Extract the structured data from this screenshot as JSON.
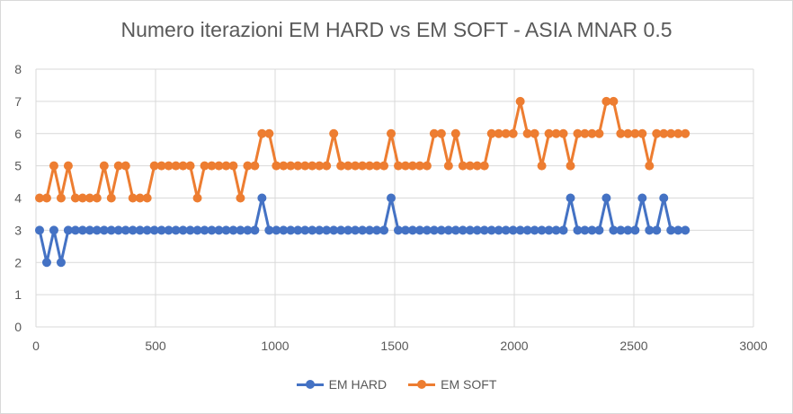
{
  "chart_data": {
    "type": "line",
    "title": "Numero iterazioni EM HARD vs EM SOFT - ASIA MNAR 0.5",
    "xlabel": "",
    "ylabel": "",
    "xlim": [
      0,
      3000
    ],
    "ylim": [
      0,
      8
    ],
    "x_ticks": [
      0,
      500,
      1000,
      1500,
      2000,
      2500,
      3000
    ],
    "y_ticks": [
      0,
      1,
      2,
      3,
      4,
      5,
      6,
      7,
      8
    ],
    "grid": true,
    "legend_position": "bottom",
    "x": [
      15,
      45,
      75,
      105,
      135,
      165,
      195,
      225,
      255,
      285,
      315,
      345,
      375,
      405,
      435,
      465,
      495,
      525,
      555,
      585,
      615,
      645,
      675,
      705,
      735,
      765,
      795,
      825,
      855,
      885,
      915,
      945,
      975,
      1005,
      1035,
      1065,
      1095,
      1125,
      1155,
      1185,
      1215,
      1245,
      1275,
      1305,
      1335,
      1365,
      1395,
      1425,
      1455,
      1485,
      1515,
      1545,
      1575,
      1605,
      1635,
      1665,
      1695,
      1725,
      1755,
      1785,
      1815,
      1845,
      1875,
      1905,
      1935,
      1965,
      1995,
      2025,
      2055,
      2085,
      2115,
      2145,
      2175,
      2205,
      2235,
      2265,
      2295,
      2325,
      2355,
      2385,
      2415,
      2445,
      2475,
      2505,
      2535,
      2565,
      2595,
      2625,
      2655,
      2685,
      2715
    ],
    "series": [
      {
        "name": "EM HARD",
        "color": "#4472c4",
        "values": [
          3,
          2,
          3,
          2,
          3,
          3,
          3,
          3,
          3,
          3,
          3,
          3,
          3,
          3,
          3,
          3,
          3,
          3,
          3,
          3,
          3,
          3,
          3,
          3,
          3,
          3,
          3,
          3,
          3,
          3,
          3,
          4,
          3,
          3,
          3,
          3,
          3,
          3,
          3,
          3,
          3,
          3,
          3,
          3,
          3,
          3,
          3,
          3,
          3,
          4,
          3,
          3,
          3,
          3,
          3,
          3,
          3,
          3,
          3,
          3,
          3,
          3,
          3,
          3,
          3,
          3,
          3,
          3,
          3,
          3,
          3,
          3,
          3,
          3,
          4,
          3,
          3,
          3,
          3,
          4,
          3,
          3,
          3,
          3,
          4,
          3,
          3,
          4,
          3,
          3,
          3
        ]
      },
      {
        "name": "EM SOFT",
        "color": "#ed7d31",
        "values": [
          4,
          4,
          5,
          4,
          5,
          4,
          4,
          4,
          4,
          5,
          4,
          5,
          5,
          4,
          4,
          4,
          5,
          5,
          5,
          5,
          5,
          5,
          4,
          5,
          5,
          5,
          5,
          5,
          4,
          5,
          5,
          6,
          6,
          5,
          5,
          5,
          5,
          5,
          5,
          5,
          5,
          6,
          5,
          5,
          5,
          5,
          5,
          5,
          5,
          6,
          5,
          5,
          5,
          5,
          5,
          6,
          6,
          5,
          6,
          5,
          5,
          5,
          5,
          6,
          6,
          6,
          6,
          7,
          6,
          6,
          5,
          6,
          6,
          6,
          5,
          6,
          6,
          6,
          6,
          7,
          7,
          6,
          6,
          6,
          6,
          5,
          6,
          6,
          6,
          6,
          6
        ]
      }
    ]
  }
}
